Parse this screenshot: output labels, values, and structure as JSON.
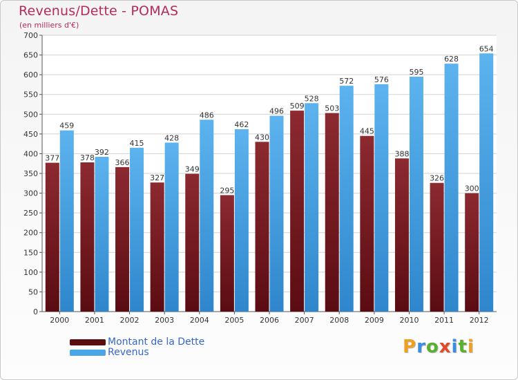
{
  "chart_data": {
    "type": "bar",
    "title": "Revenus/Dette - POMAS",
    "subtitle": "(en milliers d'€)",
    "categories": [
      "2000",
      "2001",
      "2002",
      "2003",
      "2004",
      "2005",
      "2006",
      "2007",
      "2008",
      "2009",
      "2010",
      "2011",
      "2012"
    ],
    "series": [
      {
        "name": "Montant de la Dette",
        "values": [
          377,
          378,
          366,
          327,
          349,
          295,
          430,
          509,
          503,
          445,
          388,
          326,
          300
        ],
        "color": "#7a1e24"
      },
      {
        "name": "Revenus",
        "values": [
          459,
          392,
          415,
          428,
          486,
          462,
          496,
          528,
          572,
          576,
          595,
          628,
          654
        ],
        "color": "#4ba6e8"
      }
    ],
    "ylim": [
      0,
      700
    ],
    "yticks": [
      0,
      50,
      100,
      150,
      200,
      250,
      300,
      350,
      400,
      450,
      500,
      550,
      600,
      650,
      700
    ],
    "grid": true,
    "legend_position": "bottom-left"
  },
  "logo": {
    "text": "Proxiti",
    "colors": [
      "#f0a020",
      "#3a8de0",
      "#58b031",
      "#e24a2a",
      "#3a8de0",
      "#58b031",
      "#f0a020"
    ]
  }
}
